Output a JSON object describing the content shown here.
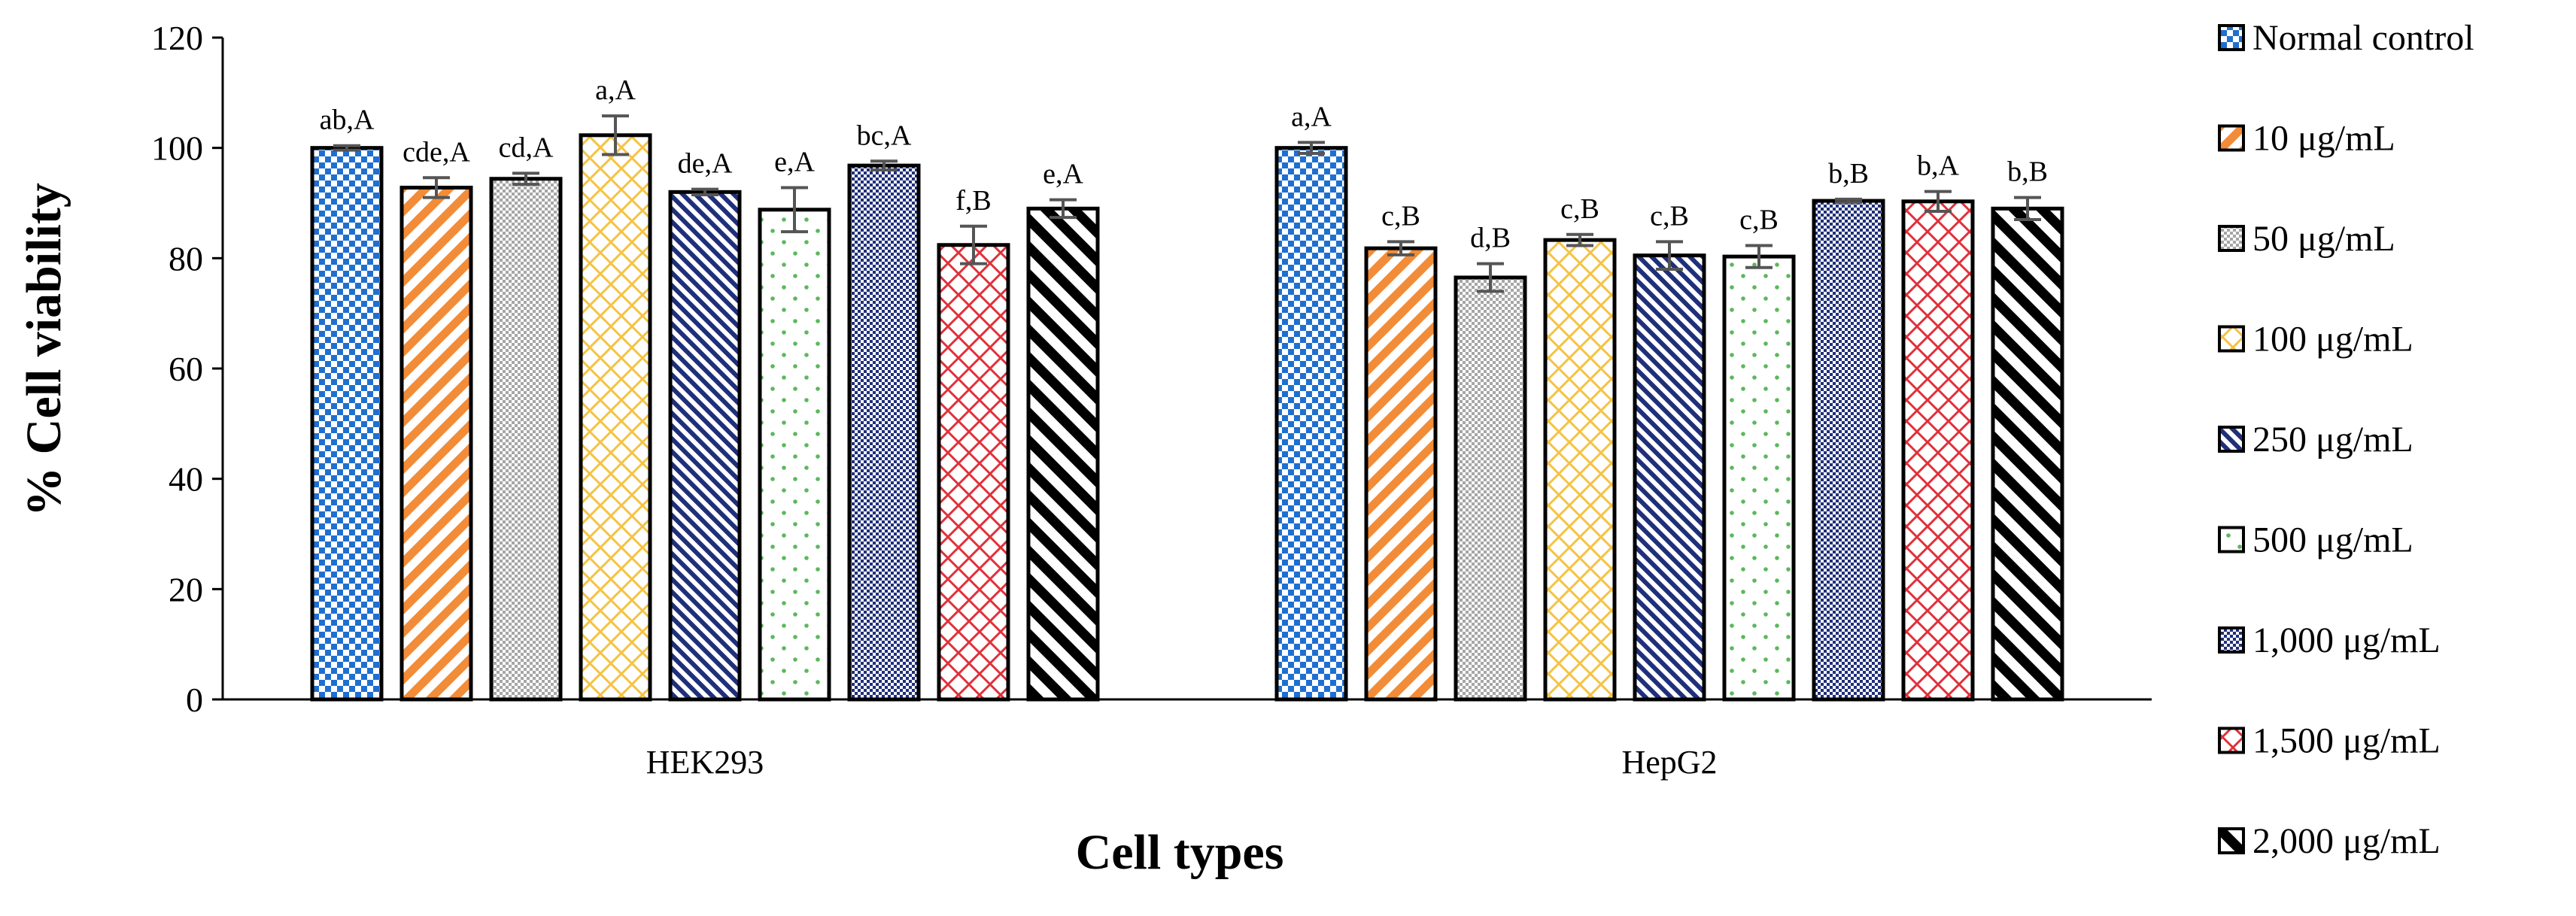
{
  "chart_data": {
    "type": "bar",
    "title": "",
    "xlabel": "Cell types",
    "ylabel": "% Cell viability",
    "ylim": [
      0,
      120
    ],
    "yticks": [
      0,
      20,
      40,
      60,
      80,
      100,
      120
    ],
    "grid": false,
    "legend_position": "right",
    "categories": [
      "HEK293",
      "HepG2"
    ],
    "series": [
      {
        "name": "Normal control",
        "values": [
          100.0,
          100.0
        ],
        "errors": [
          0.4,
          1.0
        ],
        "labels": [
          "ab,A",
          "a,A"
        ],
        "color": "#1f6fd1",
        "pattern": "checker"
      },
      {
        "name": "10 μg/mL",
        "values": [
          92.8,
          81.8
        ],
        "errors": [
          1.8,
          1.2
        ],
        "labels": [
          "cde,A",
          "c,B"
        ],
        "color": "#f28c38",
        "pattern": "diagonal-up"
      },
      {
        "name": "50 μg/mL",
        "values": [
          94.4,
          76.5
        ],
        "errors": [
          1.0,
          2.5
        ],
        "labels": [
          "cd,A",
          "d,B"
        ],
        "color": "#a6a6a6",
        "pattern": "fine-checker"
      },
      {
        "name": "100 μg/mL",
        "values": [
          102.3,
          83.3
        ],
        "errors": [
          3.5,
          1.0
        ],
        "labels": [
          "a,A",
          "c,B"
        ],
        "color": "#f5c242",
        "pattern": "lattice"
      },
      {
        "name": "250 μg/mL",
        "values": [
          92.0,
          80.5
        ],
        "errors": [
          0.5,
          2.5
        ],
        "labels": [
          "de,A",
          "c,B"
        ],
        "color": "#1f2f7a",
        "pattern": "diagonal-down-dense"
      },
      {
        "name": "500 μg/mL",
        "values": [
          88.8,
          80.3
        ],
        "errors": [
          4.0,
          2.0
        ],
        "labels": [
          "e,A",
          "c,B"
        ],
        "color": "#5cb85c",
        "pattern": "dots"
      },
      {
        "name": "1,000 μg/mL",
        "values": [
          96.8,
          90.4
        ],
        "errors": [
          0.8,
          0.3
        ],
        "labels": [
          "bc,A",
          "b,B"
        ],
        "color": "#1f2f7a",
        "pattern": "fine-checker"
      },
      {
        "name": "1,500 μg/mL",
        "values": [
          82.4,
          90.3
        ],
        "errors": [
          3.4,
          1.8
        ],
        "labels": [
          "f,B",
          "b,A"
        ],
        "color": "#e0303a",
        "pattern": "lattice"
      },
      {
        "name": "2,000 μg/mL",
        "values": [
          89.0,
          89.0
        ],
        "errors": [
          1.6,
          2.0
        ],
        "labels": [
          "e,A",
          "b,B"
        ],
        "color": "#000000",
        "pattern": "diagonal-down-wide"
      }
    ]
  }
}
